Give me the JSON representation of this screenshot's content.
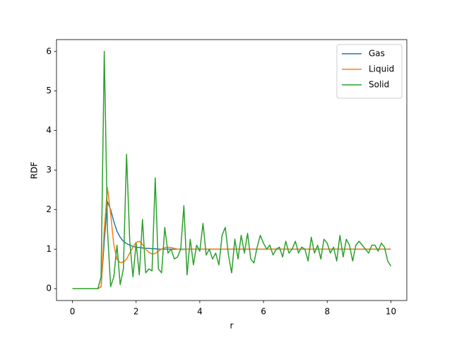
{
  "chart_data": {
    "type": "line",
    "xlabel": "r",
    "ylabel": "RDF",
    "x": [
      0,
      0.1,
      0.2,
      0.3,
      0.4,
      0.5,
      0.6,
      0.7,
      0.8,
      0.9,
      1,
      1.1,
      1.2,
      1.3,
      1.4,
      1.5,
      1.6,
      1.7,
      1.8,
      1.9,
      2,
      2.1,
      2.2,
      2.3,
      2.4,
      2.5,
      2.6,
      2.7,
      2.8,
      2.9,
      3,
      3.1,
      3.2,
      3.3,
      3.4,
      3.5,
      3.6,
      3.7,
      3.8,
      3.9,
      4,
      4.1,
      4.2,
      4.3,
      4.4,
      4.5,
      4.6,
      4.7,
      4.8,
      4.9,
      5,
      5.1,
      5.2,
      5.3,
      5.4,
      5.5,
      5.6,
      5.7,
      5.8,
      5.9,
      6,
      6.1,
      6.2,
      6.3,
      6.4,
      6.5,
      6.6,
      6.7,
      6.8,
      6.9,
      7,
      7.1,
      7.2,
      7.3,
      7.4,
      7.5,
      7.6,
      7.7,
      7.8,
      7.9,
      8,
      8.1,
      8.2,
      8.3,
      8.4,
      8.5,
      8.6,
      8.7,
      8.8,
      8.9,
      9,
      9.1,
      9.2,
      9.3,
      9.4,
      9.5,
      9.6,
      9.7,
      9.8,
      9.9,
      10
    ],
    "series": [
      {
        "name": "Gas",
        "color": "#1f77b4",
        "values": [
          0,
          0,
          0,
          0,
          0,
          0,
          0,
          0,
          0,
          0.05,
          1.2,
          2.2,
          2.0,
          1.7,
          1.45,
          1.3,
          1.2,
          1.14,
          1.1,
          1.07,
          1.05,
          1.04,
          1.03,
          1.02,
          1.02,
          1.01,
          1.01,
          1,
          1,
          1,
          1,
          1,
          1,
          1,
          1,
          1,
          1,
          1,
          1,
          1,
          1,
          1,
          1,
          1,
          1,
          1,
          1,
          1,
          1,
          1,
          1,
          1,
          1,
          1,
          1,
          1,
          1,
          1,
          1,
          1,
          1,
          1,
          1,
          1,
          1,
          1,
          1,
          1,
          1,
          1,
          1,
          1,
          1,
          1,
          1,
          1,
          1,
          1,
          1,
          1,
          1,
          1,
          1,
          1,
          1,
          1,
          1,
          1,
          1,
          1,
          1,
          1,
          1,
          1,
          1,
          1,
          1,
          1,
          1,
          1,
          1
        ]
      },
      {
        "name": "Liquid",
        "color": "#ff7f0e",
        "values": [
          0,
          0,
          0,
          0,
          0,
          0,
          0,
          0,
          0,
          0.05,
          1.5,
          2.55,
          1.9,
          1.1,
          0.75,
          0.66,
          0.67,
          0.75,
          0.9,
          1.05,
          1.17,
          1.2,
          1.12,
          1.0,
          0.92,
          0.88,
          0.89,
          0.95,
          1.0,
          1.04,
          1.05,
          1.04,
          1.02,
          1.0,
          0.99,
          0.99,
          1,
          1,
          1,
          1,
          1,
          1,
          1,
          1,
          1,
          1,
          1,
          1,
          1,
          1,
          1,
          1,
          1,
          1,
          1,
          1,
          1,
          1,
          1,
          1,
          1,
          1,
          1,
          1,
          1,
          1,
          1,
          1,
          1,
          1,
          1,
          1,
          1,
          1,
          1,
          1,
          1,
          1,
          1,
          1,
          1,
          1,
          1,
          1,
          1,
          1,
          1,
          1,
          1,
          1,
          1,
          1,
          1,
          1,
          1,
          1,
          1,
          1,
          1,
          1,
          1
        ]
      },
      {
        "name": "Solid",
        "color": "#2ca02c",
        "values": [
          0,
          0,
          0,
          0,
          0,
          0,
          0,
          0,
          0,
          0.3,
          6.0,
          1.5,
          0.05,
          0.3,
          1.1,
          0.1,
          0.5,
          3.4,
          1.2,
          0.3,
          1.15,
          0.35,
          1.75,
          0.4,
          0.5,
          0.45,
          2.8,
          0.5,
          0.4,
          1.55,
          0.9,
          1.0,
          0.75,
          0.8,
          1.0,
          2.1,
          0.35,
          1.25,
          0.6,
          1.1,
          0.95,
          1.65,
          0.85,
          1.0,
          0.75,
          0.9,
          0.6,
          1.35,
          1.55,
          0.85,
          0.4,
          1.25,
          0.75,
          1.35,
          0.9,
          1.4,
          0.75,
          0.65,
          1.05,
          1.35,
          1.15,
          1.0,
          1.1,
          0.85,
          1.0,
          1.05,
          0.8,
          1.2,
          0.9,
          1.0,
          1.2,
          0.9,
          1.05,
          1.0,
          0.7,
          1.3,
          0.9,
          1.1,
          0.75,
          1.25,
          1.15,
          0.9,
          1.05,
          0.7,
          1.35,
          0.8,
          1.25,
          1.1,
          0.7,
          1.1,
          1.2,
          1.1,
          1.0,
          0.9,
          1.1,
          1.1,
          0.95,
          1.15,
          1.05,
          0.7,
          0.57
        ]
      }
    ],
    "xlim": [
      -0.5,
      10.5
    ],
    "xticks": [
      0,
      2,
      4,
      6,
      8,
      10
    ],
    "ylim": [
      -0.3,
      6.3
    ],
    "yticks": [
      0,
      1,
      2,
      3,
      4,
      5,
      6
    ],
    "legend": "upper right"
  }
}
